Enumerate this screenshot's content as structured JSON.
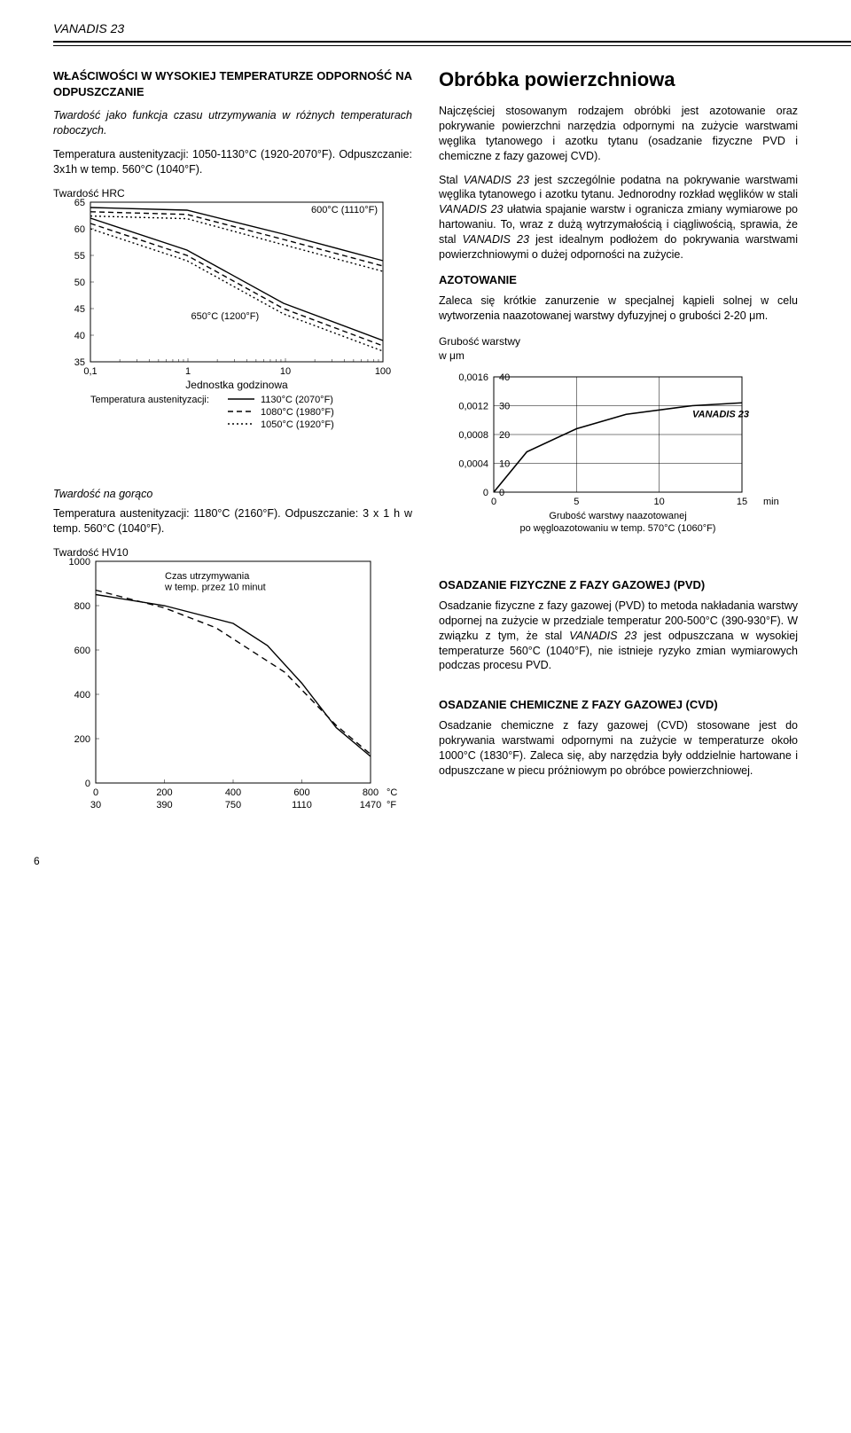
{
  "header": {
    "title": "VANADIS 23"
  },
  "left": {
    "h1": "WŁAŚCIWOŚCI W WYSOKIEJ TEMPERATURZE ODPORNOŚĆ NA ODPUSZCZANIE",
    "p1": "Twardość jako funkcja czasu utrzymywania w różnych temperaturach roboczych.",
    "p2": "Temperatura austenityzacji: 1050-1130°C (1920-2070°F). Odpuszczanie: 3x1h w temp. 560°C (1040°F).",
    "chart1": {
      "type": "line-log-x",
      "y_label": "Twardość HRC",
      "y_ticks": [
        35,
        40,
        45,
        50,
        55,
        60,
        65
      ],
      "x_ticks": [
        "0,1",
        "1",
        "10",
        "100"
      ],
      "x_label": "Jednostka godzinowa",
      "annot1": "600°C (1110°F)",
      "annot2": "650°C (1200°F)",
      "legend_pre": "Temperatura austenityzacji:",
      "legend": [
        {
          "label": "1130°C (2070°F)",
          "style": "solid"
        },
        {
          "label": "1080°C (1980°F)",
          "style": "dash"
        },
        {
          "label": "1050°C (1920°F)",
          "style": "dot"
        }
      ],
      "colors": {
        "line": "#000000",
        "grid": "#000000",
        "bg": "#ffffff"
      },
      "series": {
        "600_solid": [
          [
            0,
            64
          ],
          [
            0.33,
            63.5
          ],
          [
            0.66,
            59
          ],
          [
            1,
            54
          ]
        ],
        "600_dash": [
          [
            0,
            63.2
          ],
          [
            0.33,
            62.7
          ],
          [
            0.66,
            58
          ],
          [
            1,
            53
          ]
        ],
        "600_dot": [
          [
            0,
            62.4
          ],
          [
            0.33,
            61.9
          ],
          [
            0.66,
            57
          ],
          [
            1,
            52
          ]
        ],
        "650_solid": [
          [
            0,
            62
          ],
          [
            0.33,
            56
          ],
          [
            0.66,
            46
          ],
          [
            1,
            39
          ]
        ],
        "650_dash": [
          [
            0,
            61
          ],
          [
            0.33,
            55
          ],
          [
            0.66,
            45
          ],
          [
            1,
            38
          ]
        ],
        "650_dot": [
          [
            0,
            60
          ],
          [
            0.33,
            54
          ],
          [
            0.66,
            44
          ],
          [
            1,
            37
          ]
        ]
      }
    },
    "hot_h": "Twardość na gorąco",
    "hot_p": "Temperatura austenityzacji: 1180°C (2160°F). Odpuszczanie: 3 x 1 h w temp. 560°C (1040°F).",
    "chart2": {
      "type": "line",
      "y_label": "Twardość HV10",
      "y_ticks": [
        0,
        200,
        400,
        600,
        800,
        1000
      ],
      "x_ticks_c": [
        0,
        200,
        400,
        600,
        800
      ],
      "x_ticks_f": [
        30,
        390,
        750,
        1110,
        1470
      ],
      "x_unit_c": "°C",
      "x_unit_f": "°F",
      "annot": "Czas utrzymywania w temp. przez 10 minut",
      "colors": {
        "line": "#000000",
        "bg": "#ffffff"
      },
      "series": {
        "solid": [
          [
            0,
            850
          ],
          [
            200,
            800
          ],
          [
            400,
            720
          ],
          [
            500,
            620
          ],
          [
            600,
            450
          ],
          [
            700,
            250
          ],
          [
            800,
            120
          ]
        ],
        "dash": [
          [
            0,
            870
          ],
          [
            100,
            830
          ],
          [
            200,
            790
          ],
          [
            350,
            700
          ],
          [
            550,
            500
          ],
          [
            700,
            260
          ],
          [
            800,
            130
          ]
        ]
      }
    }
  },
  "right": {
    "h1": "Obróbka powierzchniowa",
    "p1": "Najczęściej stosowanym rodzajem obróbki jest azotowanie oraz pokrywanie powierzchni narzędzia odpornymi na zużycie warstwami węglika tytanowego i azotku tytanu (osadzanie fizyczne PVD i chemiczne z fazy gazowej CVD).",
    "p2": "Stal VANADIS 23 jest szczególnie podatna na pokrywanie warstwami węglika tytanowego i azotku tytanu. Jednorodny rozkład węglików w stali VANADIS 23 ułatwia spajanie warstw i ogranicza zmiany wymiarowe po hartowaniu. To, wraz z dużą wytrzymałością i ciągliwością, sprawia, że stal VANADIS 23 jest idealnym podłożem do pokrywania warstwami powierzchniowymi o dużej odporności na zużycie.",
    "azot_h": "AZOTOWANIE",
    "azot_p": "Zaleca się krótkie zanurzenie w specjalnej kąpieli solnej w celu wytworzenia naazotowanej warstwy dyfuzyjnej o grubości 2-20 μm.",
    "chart3": {
      "type": "line",
      "y_label_a": "Grubość warstwy",
      "y_label_b": "w μm",
      "y_ticks_l": [
        "0",
        "0,0004",
        "0,0008",
        "0,0012",
        "0,0016"
      ],
      "y_ticks_r": [
        0,
        10,
        20,
        30,
        40
      ],
      "x_ticks": [
        0,
        5,
        10,
        15
      ],
      "x_unit": "min",
      "series_label": "VANADIS 23",
      "caption_a": "Grubość warstwy naazotowanej",
      "caption_b": "po węgloazotowaniu w temp. 570°C (1060°F)",
      "colors": {
        "line": "#000000",
        "bg": "#ffffff"
      },
      "series": [
        [
          0,
          0
        ],
        [
          2,
          14
        ],
        [
          5,
          22
        ],
        [
          8,
          27
        ],
        [
          12,
          30
        ],
        [
          15,
          31
        ]
      ]
    },
    "pvd_h": "OSADZANIE FIZYCZNE Z FAZY GAZOWEJ (PVD)",
    "pvd_p": "Osadzanie fizyczne z fazy gazowej (PVD) to metoda nakładania warstwy odpornej na zużycie w przedziale temperatur 200-500°C (390-930°F). W związku z tym, że stal VANADIS 23 jest odpuszczana w wysokiej temperaturze 560°C (1040°F), nie istnieje ryzyko zmian wymiarowych podczas procesu PVD.",
    "cvd_h": "OSADZANIE CHEMICZNE Z FAZY GAZOWEJ (CVD)",
    "cvd_p": "Osadzanie chemiczne z fazy gazowej (CVD) stosowane jest do pokrywania warstwami odpornymi na zużycie w temperaturze około 1000°C (1830°F). Zaleca się, aby narzędzia były oddzielnie hartowane i odpuszczane w piecu próżniowym po obróbce powierzchniowej."
  },
  "page_number": "6"
}
